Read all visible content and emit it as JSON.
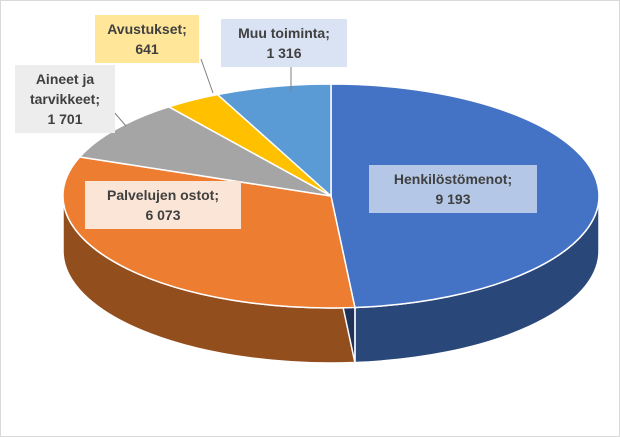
{
  "chart_data": {
    "type": "pie3d",
    "categories": [
      "Henkilöstömenot;",
      "Palvelujen ostot;",
      "Aineet ja tarvikkeet;",
      "Avustukset;",
      "Muu toiminta;"
    ],
    "values": [
      9193,
      6073,
      1701,
      641,
      1316
    ],
    "value_labels": [
      "9 193",
      "6 073",
      "1 701",
      "641",
      "1 316"
    ],
    "colors": [
      "#4472c4",
      "#ed7d31",
      "#a5a5a5",
      "#ffc000",
      "#5b9bd5"
    ]
  }
}
